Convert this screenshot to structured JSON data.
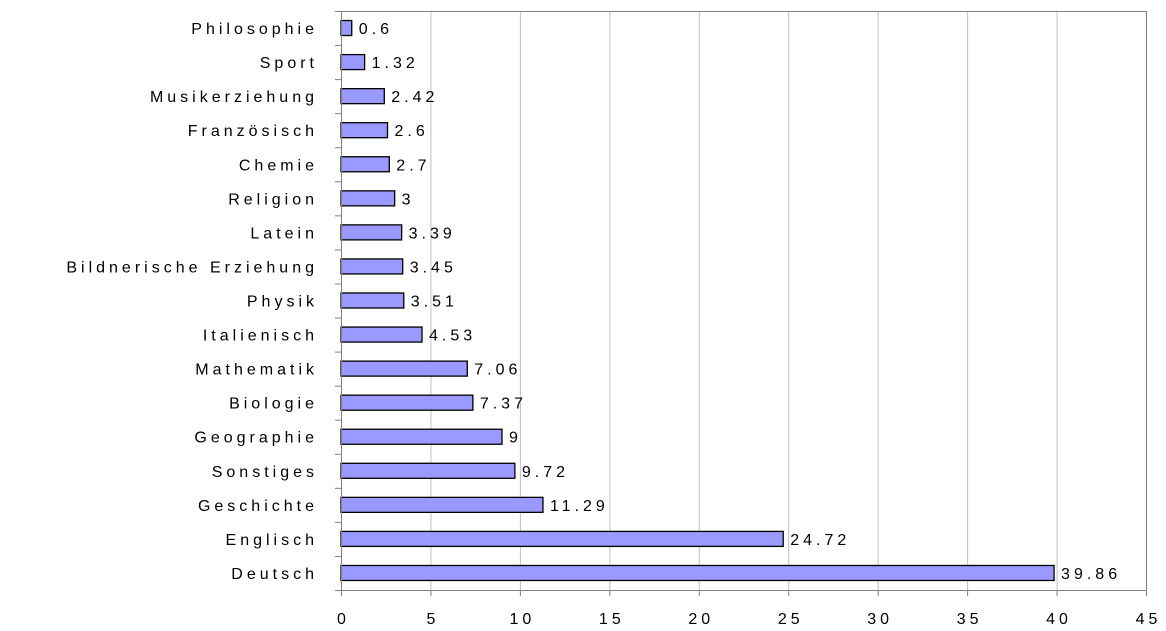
{
  "chart_data": {
    "type": "bar",
    "orientation": "horizontal",
    "categories": [
      "Philosophie",
      "Sport",
      "Musikerziehung",
      "Französisch",
      "Chemie",
      "Religion",
      "Latein",
      "Bildnerische Erziehung",
      "Physik",
      "Italienisch",
      "Mathematik",
      "Biologie",
      "Geographie",
      "Sonstiges",
      "Geschichte",
      "Englisch",
      "Deutsch"
    ],
    "values": [
      0.6,
      1.32,
      2.42,
      2.6,
      2.7,
      3,
      3.39,
      3.45,
      3.51,
      4.53,
      7.06,
      7.37,
      9,
      9.72,
      11.29,
      24.72,
      39.86
    ],
    "value_labels": [
      "0.6",
      "1.32",
      "2.42",
      "2.6",
      "2.7",
      "3",
      "3.39",
      "3.45",
      "3.51",
      "4.53",
      "7.06",
      "7.37",
      "9",
      "9.72",
      "11.29",
      "24.72",
      "39.86"
    ],
    "x_ticks": [
      0,
      5,
      10,
      15,
      20,
      25,
      30,
      35,
      40,
      45
    ],
    "x_tick_labels": [
      "0",
      "5",
      "10",
      "15",
      "20",
      "25",
      "30",
      "35",
      "40",
      "45"
    ],
    "xlim": [
      0,
      45
    ],
    "xlabel": "",
    "ylabel": "",
    "title": "",
    "grid": "vertical",
    "legend": "none",
    "colors": {
      "bar_fill": "#9999ff",
      "bar_stroke": "#000000",
      "grid": "#c0c0c0",
      "axis": "#808080",
      "background": "#ffffff"
    }
  }
}
